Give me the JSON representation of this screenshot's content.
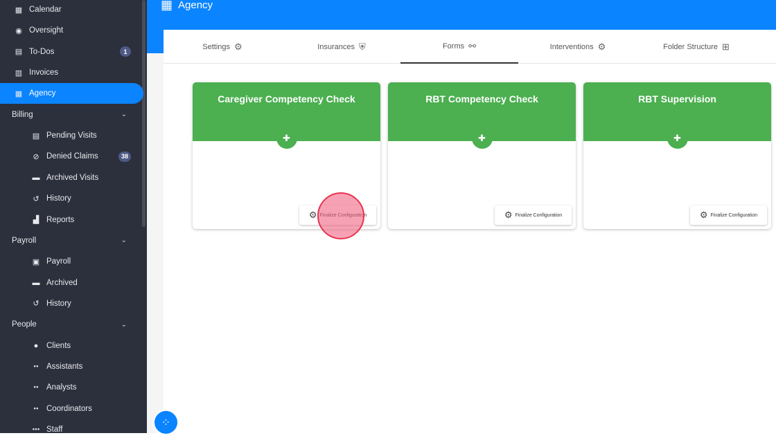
{
  "sidebar": {
    "items": [
      {
        "label": "Calendar",
        "icon": "calendar-icon",
        "glyph": "▦"
      },
      {
        "label": "Oversight",
        "icon": "eye-icon",
        "glyph": "◉"
      },
      {
        "label": "To-Dos",
        "icon": "todo-icon",
        "glyph": "▤",
        "badge": "1"
      },
      {
        "label": "Invoices",
        "icon": "invoice-icon",
        "glyph": "▥"
      },
      {
        "label": "Agency",
        "icon": "agency-icon",
        "glyph": "▦",
        "active": true
      },
      {
        "label": "Billing",
        "section": true
      },
      {
        "label": "Pending Visits",
        "icon": "pending-visits-icon",
        "glyph": "▤"
      },
      {
        "label": "Denied Claims",
        "icon": "denied-icon",
        "glyph": "⊘",
        "badge": "38"
      },
      {
        "label": "Archived Visits",
        "icon": "archive-icon",
        "glyph": "▬"
      },
      {
        "label": "History",
        "icon": "history-icon",
        "glyph": "↺"
      },
      {
        "label": "Reports",
        "icon": "reports-icon",
        "glyph": "▟"
      },
      {
        "label": "Payroll",
        "section": true
      },
      {
        "label": "Payroll",
        "icon": "payroll-icon",
        "glyph": "▣"
      },
      {
        "label": "Archived",
        "icon": "archive-icon",
        "glyph": "▬"
      },
      {
        "label": "History",
        "icon": "history-icon",
        "glyph": "↺"
      },
      {
        "label": "People",
        "section": true
      },
      {
        "label": "Clients",
        "icon": "person-icon",
        "glyph": "●"
      },
      {
        "label": "Assistants",
        "icon": "people-icon",
        "glyph": "●●"
      },
      {
        "label": "Analysts",
        "icon": "people-icon",
        "glyph": "●●"
      },
      {
        "label": "Coordinators",
        "icon": "people-icon",
        "glyph": "●●"
      },
      {
        "label": "Staff",
        "icon": "staff-icon",
        "glyph": "●●●"
      }
    ]
  },
  "header": {
    "title": "Agency"
  },
  "tabs": [
    {
      "label": "Settings",
      "icon": "gear-icon",
      "glyph": "⚙"
    },
    {
      "label": "Insurances",
      "icon": "shield-icon",
      "glyph": "⛨"
    },
    {
      "label": "Forms",
      "icon": "forms-icon",
      "glyph": "⚯",
      "active": true
    },
    {
      "label": "Interventions",
      "icon": "gear-icon",
      "glyph": "⚙"
    },
    {
      "label": "Folder Structure",
      "icon": "folder-tree-icon",
      "glyph": "⊞"
    }
  ],
  "cards": [
    {
      "title": "Caregiver Competency Check",
      "button": "Finalize Configuration"
    },
    {
      "title": "RBT Competency Check",
      "button": "Finalize Configuration"
    },
    {
      "title": "RBT Supervision",
      "button": "Finalize Configuration"
    }
  ],
  "colors": {
    "accent": "#0a84ff",
    "card": "#4caf50",
    "sidebar": "#2c2f3c"
  }
}
